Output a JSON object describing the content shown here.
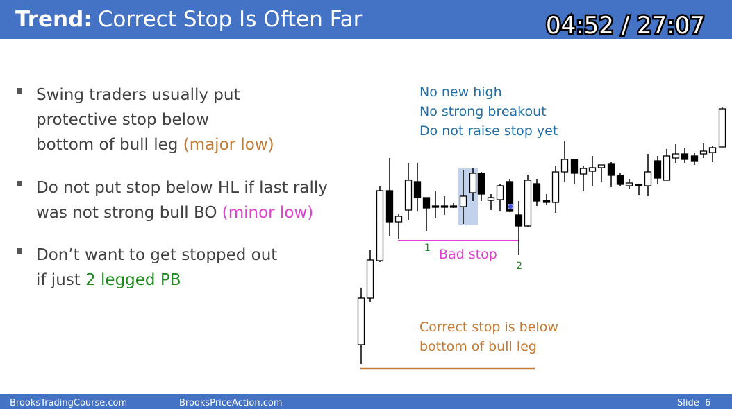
{
  "header": {
    "title_bold": "Trend:",
    "title_rest": "Correct Stop Is Often Far",
    "timer": "04:52 / 27:07"
  },
  "bullets": [
    {
      "lines": [
        [
          {
            "text": "Swing traders usually put"
          }
        ],
        [
          {
            "text": "protective stop below"
          }
        ],
        [
          {
            "text": "bottom of bull leg "
          },
          {
            "text": "(major low)",
            "color": "#c57a32"
          }
        ]
      ]
    },
    {
      "lines": [
        [
          {
            "text": "Do not put stop below HL if last rally"
          }
        ],
        [
          {
            "text": "was not strong bull BO "
          },
          {
            "text": "(minor low)",
            "color": "#e040d0"
          }
        ]
      ]
    },
    {
      "lines": [
        [
          {
            "text": "Don’t want to get stopped out"
          }
        ],
        [
          {
            "text": "if just "
          },
          {
            "text": "2 legged PB",
            "color": "#1a8a1a"
          }
        ]
      ]
    }
  ],
  "chart_notes": {
    "no_new_high": [
      "No new high",
      "No strong breakout",
      "Do not raise stop yet"
    ],
    "label_1": "1",
    "label_2": "2",
    "bad_stop": "Bad stop",
    "correct_stop": [
      "Correct stop is below",
      "bottom of bull leg"
    ]
  },
  "footer": {
    "left": "BrooksTradingCourse.com",
    "middle": "BrooksPriceAction.com",
    "slide": "Slide  6"
  }
}
